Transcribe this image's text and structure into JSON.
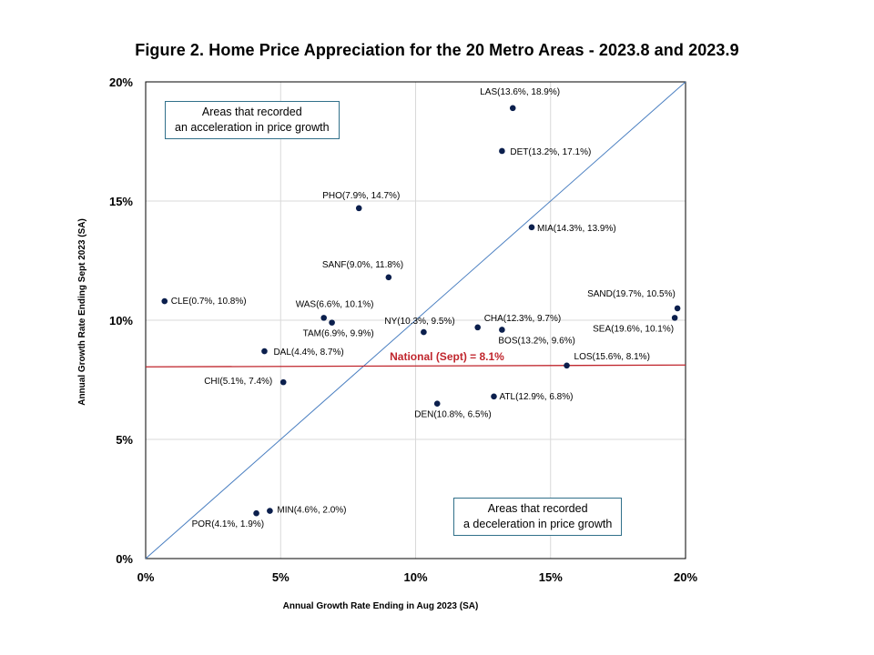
{
  "chart_data": {
    "type": "scatter",
    "title": "Figure 2. Home Price Appreciation  for the 20 Metro Areas - 2023.8 and  2023.9",
    "xlabel": "Annual Growth Rate Ending  in Aug 2023 (SA)",
    "ylabel": "Annual Growth Rate Ending Sept 2023 (SA)",
    "xlim": [
      0,
      20
    ],
    "ylim": [
      0,
      20
    ],
    "x_ticks": [
      "0%",
      "5%",
      "10%",
      "15%",
      "20%"
    ],
    "y_ticks": [
      "0%",
      "5%",
      "10%",
      "15%",
      "20%"
    ],
    "grid": true,
    "point_color": "#0b1f4d",
    "diagonal_color": "#4a7fc1",
    "national_line_color": "#c0262d",
    "national": {
      "value": 8.1,
      "label": "National (Sept) = 8.1%"
    },
    "annotations": [
      {
        "id": "accel",
        "lines": [
          "Areas that recorded",
          "an acceleration in price growth"
        ]
      },
      {
        "id": "decel",
        "lines": [
          "Areas that recorded",
          "a deceleration in price growth"
        ]
      }
    ],
    "points": [
      {
        "label": "LAS(13.6%, 18.9%)",
        "x": 13.6,
        "y": 18.9
      },
      {
        "label": "DET(13.2%, 17.1%)",
        "x": 13.2,
        "y": 17.1
      },
      {
        "label": "PHO(7.9%, 14.7%)",
        "x": 7.9,
        "y": 14.7
      },
      {
        "label": "MIA(14.3%, 13.9%)",
        "x": 14.3,
        "y": 13.9
      },
      {
        "label": "SANF(9.0%, 11.8%)",
        "x": 9.0,
        "y": 11.8
      },
      {
        "label": "CLE(0.7%, 10.8%)",
        "x": 0.7,
        "y": 10.8
      },
      {
        "label": "SAND(19.7%, 10.5%)",
        "x": 19.7,
        "y": 10.5
      },
      {
        "label": "WAS(6.6%, 10.1%)",
        "x": 6.6,
        "y": 10.1
      },
      {
        "label": "SEA(19.6%, 10.1%)",
        "x": 19.6,
        "y": 10.1
      },
      {
        "label": "TAM(6.9%, 9.9%)",
        "x": 6.9,
        "y": 9.9
      },
      {
        "label": "NY(10.3%, 9.5%)",
        "x": 10.3,
        "y": 9.5
      },
      {
        "label": "CHA(12.3%, 9.7%)",
        "x": 12.3,
        "y": 9.7
      },
      {
        "label": "BOS(13.2%, 9.6%)",
        "x": 13.2,
        "y": 9.6
      },
      {
        "label": "DAL(4.4%, 8.7%)",
        "x": 4.4,
        "y": 8.7
      },
      {
        "label": "LOS(15.6%, 8.1%)",
        "x": 15.6,
        "y": 8.1
      },
      {
        "label": "CHI(5.1%, 7.4%)",
        "x": 5.1,
        "y": 7.4
      },
      {
        "label": "ATL(12.9%, 6.8%)",
        "x": 12.9,
        "y": 6.8
      },
      {
        "label": "DEN(10.8%, 6.5%)",
        "x": 10.8,
        "y": 6.5
      },
      {
        "label": "MIN(4.6%, 2.0%)",
        "x": 4.6,
        "y": 2.0
      },
      {
        "label": "POR(4.1%, 1.9%)",
        "x": 4.1,
        "y": 1.9
      }
    ]
  }
}
